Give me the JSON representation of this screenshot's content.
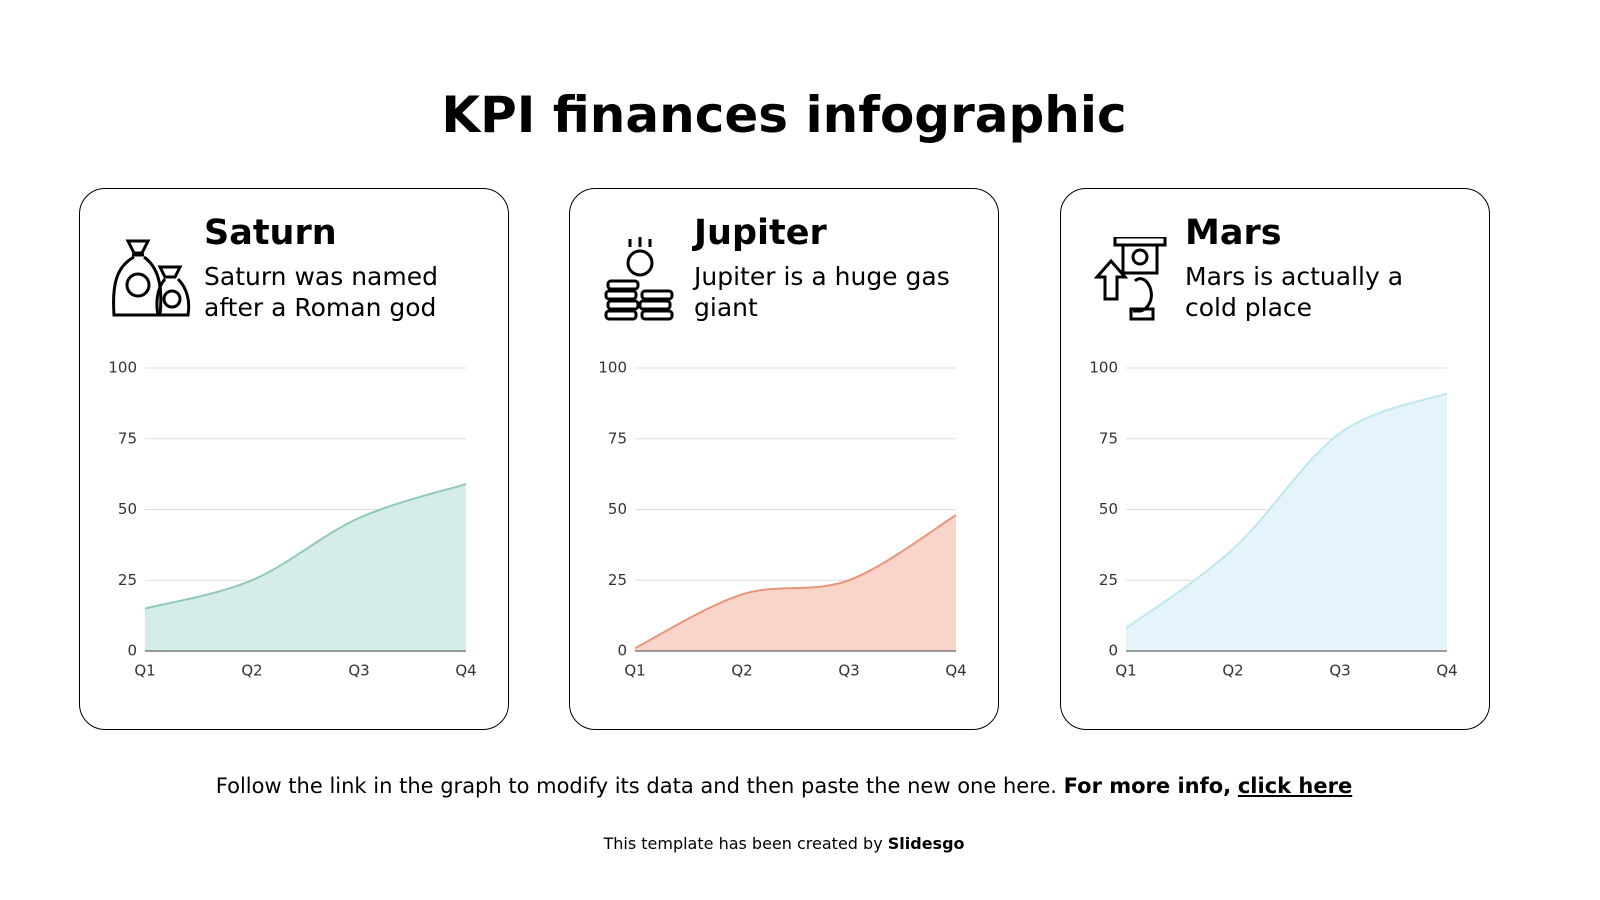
{
  "title": "KPI finances infographic",
  "chart_data": [
    {
      "type": "area",
      "title": "Saturn",
      "description": "Saturn was named after a Roman god",
      "categories": [
        "Q1",
        "Q2",
        "Q3",
        "Q4"
      ],
      "values": [
        15,
        25,
        47,
        59
      ],
      "color": "#8fc9bc",
      "fill": "#d6ece8",
      "ylim": [
        0,
        100
      ],
      "yticks": [
        0,
        25,
        50,
        75,
        100
      ],
      "grid": true
    },
    {
      "type": "area",
      "title": "Jupiter",
      "description": "Jupiter is a huge gas giant",
      "categories": [
        "Q1",
        "Q2",
        "Q3",
        "Q4"
      ],
      "values": [
        1,
        20,
        25,
        48
      ],
      "color": "#e8967a",
      "fill": "#f9d5c9",
      "ylim": [
        0,
        100
      ],
      "yticks": [
        0,
        25,
        50,
        75,
        100
      ],
      "grid": true
    },
    {
      "type": "area",
      "title": "Mars",
      "description": "Mars is actually a cold place",
      "categories": [
        "Q1",
        "Q2",
        "Q3",
        "Q4"
      ],
      "values": [
        8,
        36,
        77,
        91
      ],
      "color": "#bfe6f0",
      "fill": "#e4f4fa",
      "ylim": [
        0,
        100
      ],
      "yticks": [
        0,
        25,
        50,
        75,
        100
      ],
      "grid": true
    }
  ],
  "footer": {
    "text": "Follow the link in the graph to modify its data and then paste the new one here.",
    "bold": "For more info,",
    "link": "click here"
  },
  "credit": {
    "text": "This template has been created by",
    "brand": "Slidesgo"
  }
}
